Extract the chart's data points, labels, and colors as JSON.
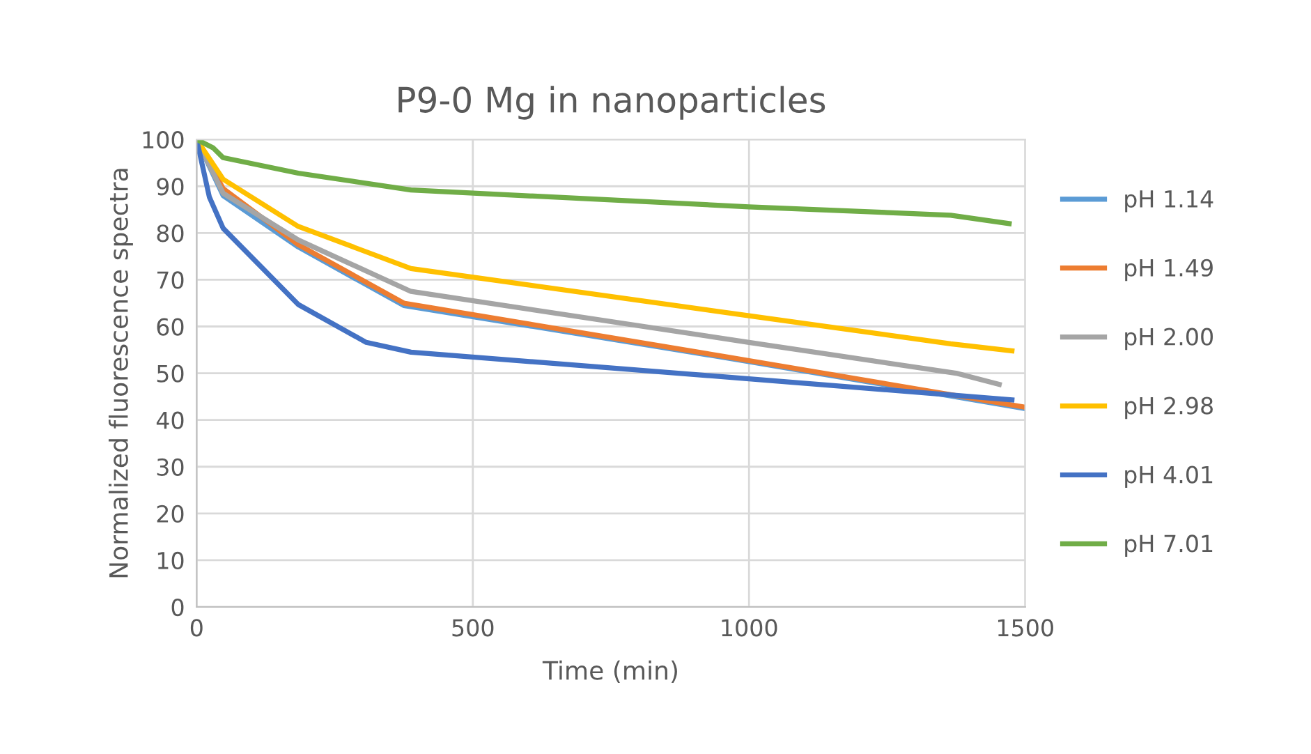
{
  "chart_data": {
    "type": "line",
    "title": "P9-0 Mg in nanoparticles",
    "xlabel": "Time (min)",
    "ylabel": "Normalized fluorescence spectra",
    "xlim": [
      0,
      1500
    ],
    "xticks": [
      0,
      500,
      1000,
      1500
    ],
    "ylim": [
      0,
      100
    ],
    "yticks": [
      0,
      10,
      20,
      30,
      40,
      50,
      60,
      70,
      80,
      90,
      100
    ],
    "grid": true,
    "legend": "right",
    "marker": "none",
    "line_style": "solid",
    "series": [
      {
        "name": "pH 1.14",
        "color": "#5b9bd5",
        "x": [
          0,
          48,
          184,
          375,
          1000,
          1496
        ],
        "values": [
          100,
          88,
          77,
          64.5,
          52.5,
          42.5
        ]
      },
      {
        "name": "pH 1.49",
        "color": "#ed7d31",
        "x": [
          0,
          48,
          184,
          375,
          1000,
          1496
        ],
        "values": [
          100,
          89.5,
          77.5,
          65,
          52.7,
          42.8
        ]
      },
      {
        "name": "pH 2.00",
        "color": "#a5a5a5",
        "x": [
          0,
          48,
          184,
          388,
          1000,
          1375,
          1453
        ],
        "values": [
          100,
          88.5,
          78.5,
          67.5,
          56.6,
          50,
          47.6
        ]
      },
      {
        "name": "pH 2.98",
        "color": "#ffc000",
        "x": [
          0,
          48,
          184,
          388,
          1000,
          1365,
          1476
        ],
        "values": [
          100,
          91.5,
          81.4,
          72.4,
          62.3,
          56.3,
          54.8
        ]
      },
      {
        "name": "pH 4.01",
        "color": "#4472c4",
        "x": [
          0,
          23,
          48,
          184,
          307,
          388,
          1000,
          1476
        ],
        "values": [
          100,
          87.7,
          81,
          64.7,
          56.6,
          54.5,
          48.8,
          44.3
        ]
      },
      {
        "name": "pH 7.01",
        "color": "#70ad47",
        "x": [
          0,
          30,
          48,
          184,
          388,
          1000,
          1365,
          1471
        ],
        "values": [
          100,
          98.2,
          96.1,
          92.8,
          89.2,
          85.6,
          83.8,
          82
        ]
      }
    ]
  }
}
